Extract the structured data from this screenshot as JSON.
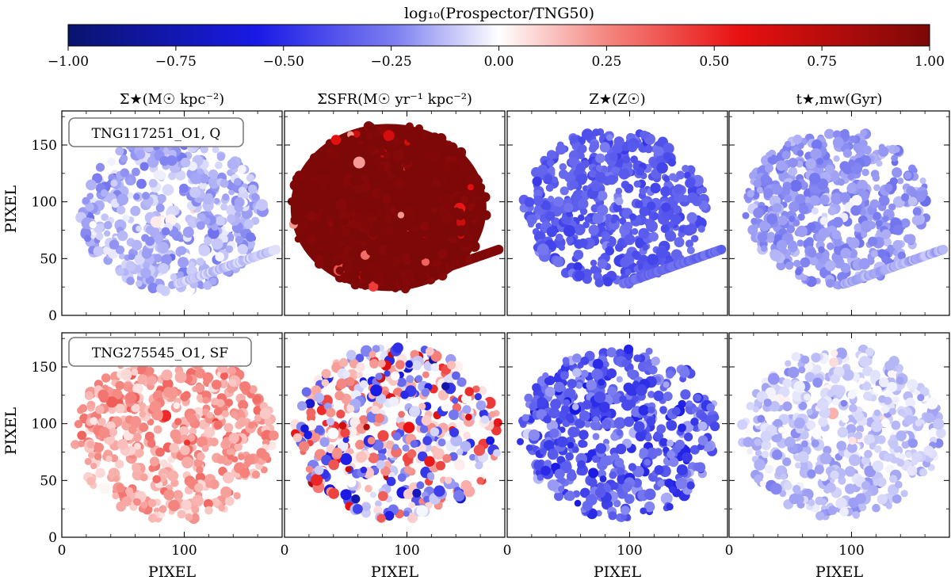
{
  "colorbar": {
    "label": "log₁₀(Prospector/TNG50)",
    "ticks": [
      -1.0,
      -0.75,
      -0.5,
      -0.25,
      0.0,
      0.25,
      0.5,
      0.75,
      1.0
    ],
    "tick_labels": [
      "−1.00",
      "−0.75",
      "−0.50",
      "−0.25",
      "0.00",
      "0.25",
      "0.50",
      "0.75",
      "1.00"
    ],
    "vmin": -1.0,
    "vmax": 1.0,
    "cmap": [
      "#08146e",
      "#1a1ae6",
      "#7d7ff0",
      "#ffffff",
      "#f58a84",
      "#e81010",
      "#7d0808"
    ]
  },
  "columns": [
    {
      "title": "Σ★(M☉ kpc⁻²)"
    },
    {
      "title": "ΣSFR(M☉ yr⁻¹ kpc⁻²)"
    },
    {
      "title": "Z★(Z☉)"
    },
    {
      "title": "t★,mw(Gyr)"
    }
  ],
  "rows": [
    {
      "label": "TNG117251_O1, Q"
    },
    {
      "label": "TNG275545_O1, SF"
    }
  ],
  "axes": {
    "xlabel": "PIXEL",
    "ylabel": "PIXEL",
    "xticks": [
      0,
      100
    ],
    "yticks": [
      0,
      50,
      100,
      150
    ],
    "xlim": [
      0,
      180
    ],
    "ylim": [
      0,
      180
    ]
  },
  "chart_data": {
    "type": "heatmap",
    "title": "log₁₀(Prospector/TNG50)",
    "xlabel": "PIXEL",
    "ylabel": "PIXEL",
    "xlim": [
      0,
      180
    ],
    "ylim": [
      0,
      180
    ],
    "panels": [
      {
        "row": "TNG117251_O1, Q",
        "quantity": "Σ★",
        "typical_value": -0.15,
        "spread": 0.12,
        "center": [
          90,
          90
        ],
        "radius": 75,
        "arm": true
      },
      {
        "row": "TNG117251_O1, Q",
        "quantity": "ΣSFR",
        "typical_value": 1.0,
        "spread": 0.05,
        "center": [
          85,
          95
        ],
        "radius": 80,
        "arm": true
      },
      {
        "row": "TNG117251_O1, Q",
        "quantity": "Z★",
        "typical_value": -0.35,
        "spread": 0.1,
        "center": [
          88,
          95
        ],
        "radius": 75,
        "arm": true
      },
      {
        "row": "TNG117251_O1, Q",
        "quantity": "t★,mw",
        "typical_value": -0.2,
        "spread": 0.08,
        "center": [
          88,
          95
        ],
        "radius": 75,
        "arm": true
      },
      {
        "row": "TNG275545_O1, SF",
        "quantity": "Σ★",
        "typical_value": 0.2,
        "spread": 0.15,
        "center": [
          92,
          90
        ],
        "radius": 82,
        "arm": false
      },
      {
        "row": "TNG275545_O1, SF",
        "quantity": "ΣSFR",
        "typical_value": 0.0,
        "spread": 0.6,
        "center": [
          92,
          92
        ],
        "radius": 84,
        "arm": false
      },
      {
        "row": "TNG275545_O1, SF",
        "quantity": "Z★",
        "typical_value": -0.35,
        "spread": 0.2,
        "center": [
          92,
          92
        ],
        "radius": 82,
        "arm": false
      },
      {
        "row": "TNG275545_O1, SF",
        "quantity": "t★,mw",
        "typical_value": -0.1,
        "spread": 0.12,
        "center": [
          92,
          92
        ],
        "radius": 82,
        "arm": false
      }
    ]
  }
}
